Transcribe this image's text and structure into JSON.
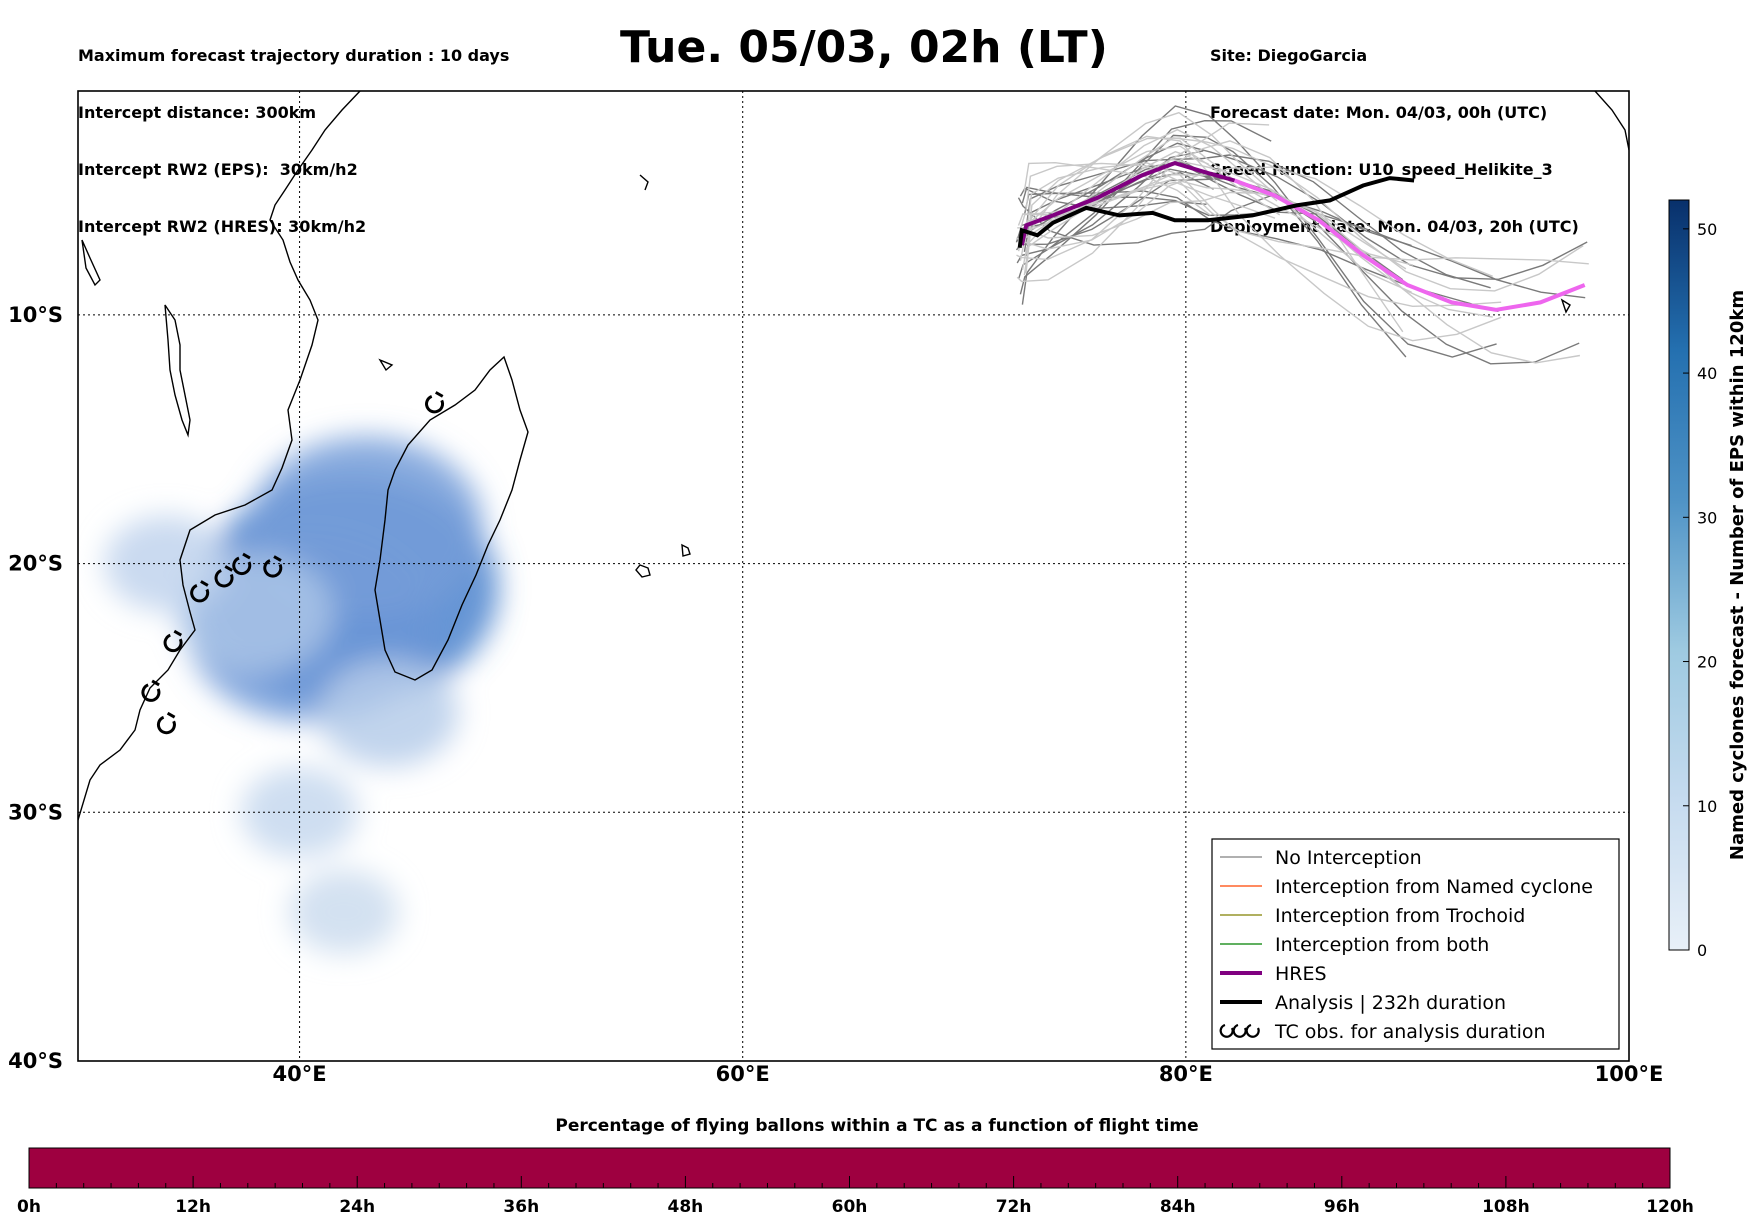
{
  "header": {
    "left_lines": [
      "Maximum forecast trajectory duration : 10 days",
      "Intercept distance: 300km",
      "Intercept RW2 (EPS):  30km/h2",
      "Intercept RW2 (HRES): 30km/h2"
    ],
    "title": "Tue. 05/03, 02h (LT)",
    "right_lines": [
      "Site: DiegoGarcia",
      "Forecast date: Mon. 04/03, 00h (UTC)",
      "Speed function: U10_speed_Helikite_3",
      "Deployment date: Mon. 04/03, 20h (UTC)"
    ]
  },
  "chart_data": [
    {
      "type": "map",
      "x_ticks": [
        {
          "lon": 40,
          "label": "40°E"
        },
        {
          "lon": 60,
          "label": "60°E"
        },
        {
          "lon": 80,
          "label": "80°E"
        },
        {
          "lon": 100,
          "label": "100°E"
        }
      ],
      "y_ticks": [
        {
          "lat": -10,
          "label": "10°S"
        },
        {
          "lat": -20,
          "label": "20°S"
        },
        {
          "lat": -30,
          "label": "30°S"
        },
        {
          "lat": -40,
          "label": "40°S"
        }
      ],
      "xlim": [
        30,
        100
      ],
      "ylim": [
        -40,
        -1
      ],
      "grid": true,
      "legend_position": "bottom-right",
      "legend": [
        {
          "label": "No Interception",
          "color": "#808080",
          "style": "thin-line"
        },
        {
          "label": "Interception from Named cyclone",
          "color": "#ff4500",
          "style": "thin-line"
        },
        {
          "label": "Interception from Trochoid",
          "color": "#808000",
          "style": "thin-line"
        },
        {
          "label": "Interception from both",
          "color": "#008000",
          "style": "thin-line"
        },
        {
          "label": "HRES",
          "color": "#800080",
          "style": "thick-line"
        },
        {
          "label": "Analysis | 232h duration",
          "color": "#000000",
          "style": "thick-line"
        },
        {
          "label": "TC obs. for analysis duration",
          "color": "#000000",
          "style": "tc-symbol"
        }
      ],
      "hres_track": [
        [
          72.6,
          -7.2
        ],
        [
          72.8,
          -6.4
        ],
        [
          74,
          -6
        ],
        [
          76,
          -5.3
        ],
        [
          78,
          -4.4
        ],
        [
          79.5,
          -3.9
        ],
        [
          81,
          -4.3
        ],
        [
          82.2,
          -4.6
        ],
        [
          84,
          -5.2
        ],
        [
          86,
          -6.2
        ],
        [
          88,
          -7.6
        ],
        [
          90,
          -8.8
        ],
        [
          92,
          -9.5
        ],
        [
          94,
          -9.8
        ],
        [
          96,
          -9.5
        ],
        [
          98,
          -8.8
        ]
      ],
      "analysis_track": [
        [
          72.5,
          -7.3
        ],
        [
          72.6,
          -6.6
        ],
        [
          73.3,
          -6.8
        ],
        [
          74,
          -6.3
        ],
        [
          75.5,
          -5.7
        ],
        [
          77,
          -6
        ],
        [
          78.5,
          -5.9
        ],
        [
          79.5,
          -6.2
        ],
        [
          81,
          -6.2
        ],
        [
          83,
          -6
        ],
        [
          85,
          -5.6
        ],
        [
          86.5,
          -5.4
        ],
        [
          88,
          -4.8
        ],
        [
          89.2,
          -4.5
        ],
        [
          90.3,
          -4.6
        ]
      ],
      "tc_observations": [
        [
          46.1,
          -13.6
        ],
        [
          38.8,
          -20.2
        ],
        [
          37.4,
          -20.1
        ],
        [
          36.6,
          -20.6
        ],
        [
          35.5,
          -21.2
        ],
        [
          34.3,
          -23.2
        ],
        [
          33.3,
          -25.2
        ],
        [
          34.0,
          -26.5
        ]
      ],
      "colorbar": {
        "label": "Named cyclones forecast - Number of EPS within 120km",
        "ticks": [
          0,
          10,
          20,
          30,
          40,
          50
        ],
        "range": [
          0,
          52
        ],
        "position": "right"
      },
      "density_blobs": [
        {
          "lon": 42.3,
          "lat": -21.0,
          "value": 28
        },
        {
          "lon": 40.5,
          "lat": -22.5,
          "value": 22
        },
        {
          "lon": 43.0,
          "lat": -18.5,
          "value": 20
        },
        {
          "lon": 38.0,
          "lat": -22.0,
          "value": 10
        },
        {
          "lon": 34.0,
          "lat": -20.0,
          "value": 6
        },
        {
          "lon": 44.0,
          "lat": -26.0,
          "value": 8
        },
        {
          "lon": 40.0,
          "lat": -30.0,
          "value": 5
        },
        {
          "lon": 42.0,
          "lat": -34.0,
          "value": 4
        }
      ]
    },
    {
      "type": "bar",
      "title": "Percentage of flying ballons within a TC as a function of flight time",
      "x_ticks": [
        "0h",
        "12h",
        "24h",
        "36h",
        "48h",
        "60h",
        "72h",
        "84h",
        "96h",
        "108h",
        "120h"
      ],
      "xlim": [
        0,
        120
      ],
      "values": "uniform",
      "color": "#9e0040"
    }
  ]
}
